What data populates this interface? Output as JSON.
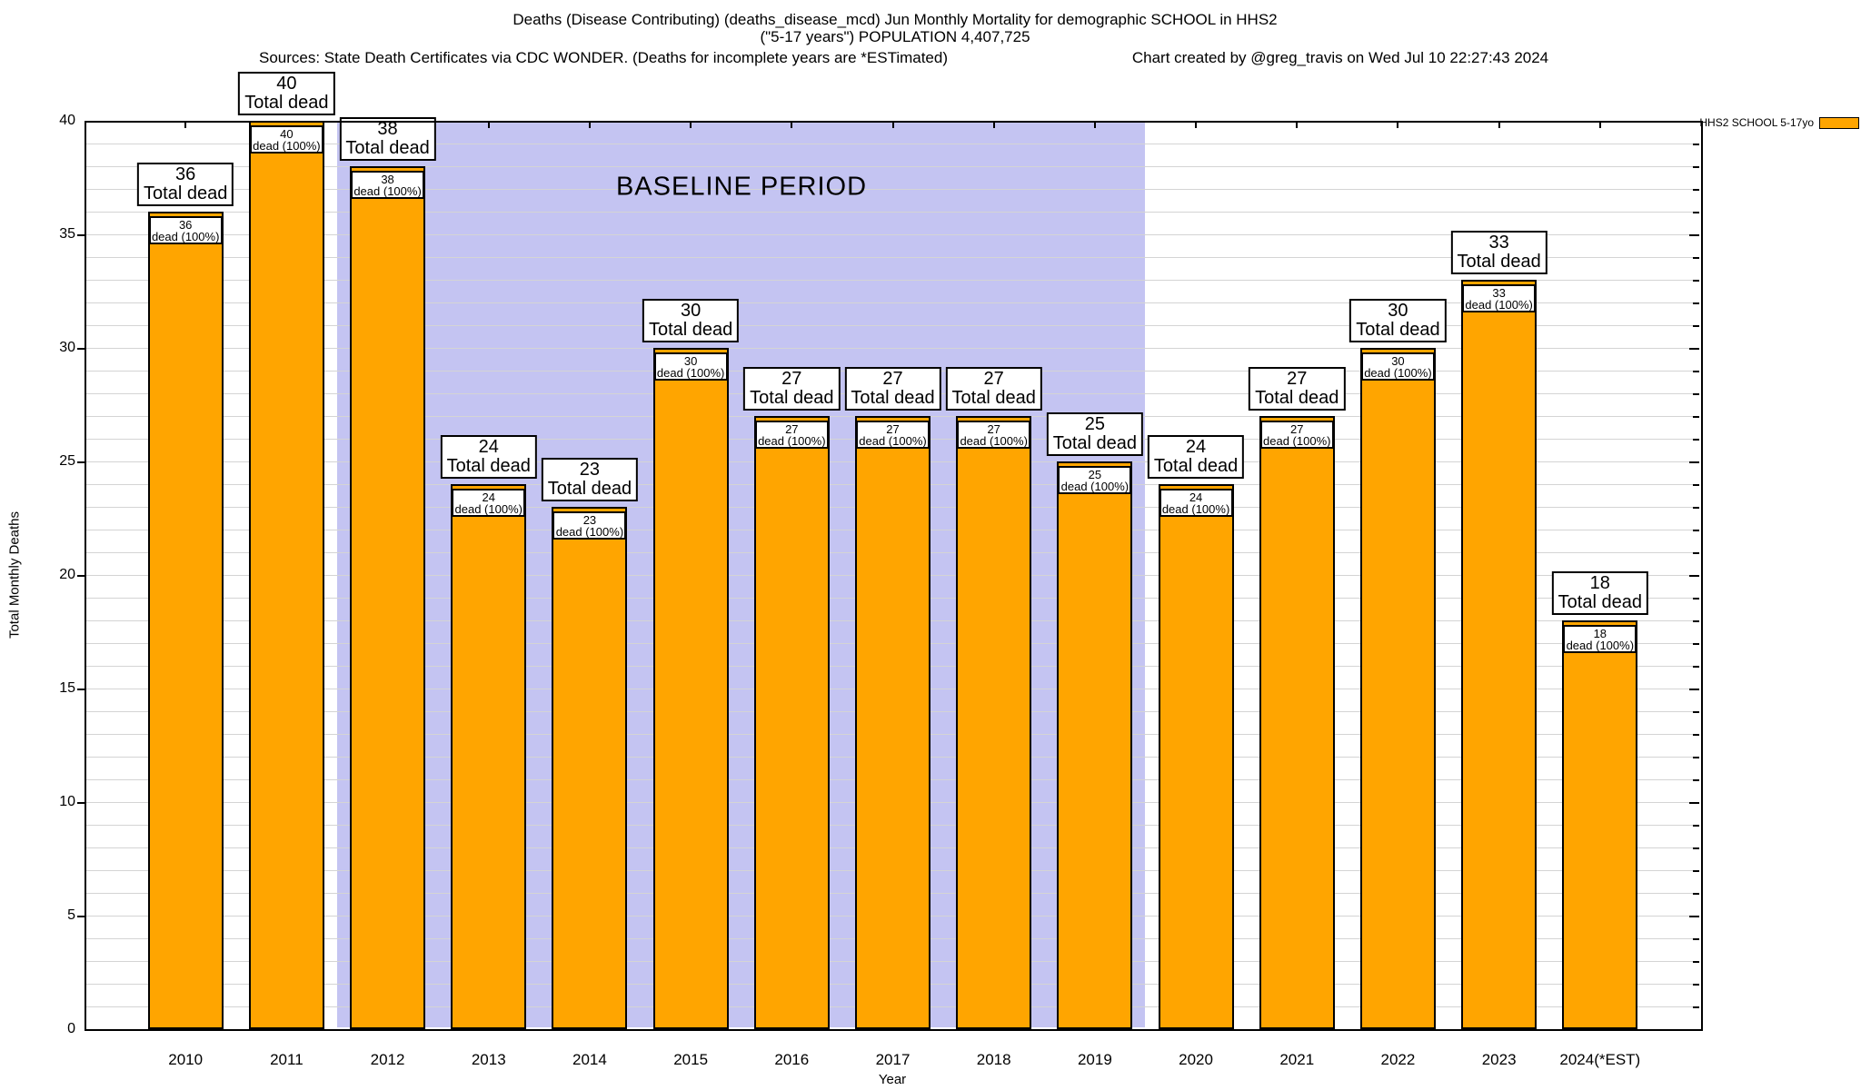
{
  "header": {
    "title_line1": "Deaths (Disease Contributing) (deaths_disease_mcd) Jun Monthly Mortality for demographic SCHOOL in HHS2",
    "title_line2": "(\"5-17 years\") POPULATION 4,407,725",
    "sources_note": "Sources: State Death Certificates via CDC WONDER. (Deaths for incomplete years are *ESTimated)",
    "credit_note": "Chart created by @greg_travis on Wed Jul 10 22:27:43 2024"
  },
  "legend": {
    "label": "HHS2 SCHOOL 5-17yo",
    "swatch_color": "#FFA500"
  },
  "baseline": {
    "label": "BASELINE PERIOD",
    "start_year": 2012,
    "end_year": 2019,
    "color": "#C4C4F2"
  },
  "axes": {
    "ylabel": "Total Monthly Deaths",
    "xlabel": "Year",
    "ytick_labels": [
      "0",
      "5",
      "10",
      "15",
      "20",
      "25",
      "30",
      "35",
      "40"
    ],
    "ylim": [
      0,
      40
    ],
    "minor_grid_step": 1
  },
  "colors": {
    "bar_fill": "#FFA500",
    "bar_border": "#000000",
    "grid": "#d4d4d4"
  },
  "labels": {
    "total_dead_suffix": "Total dead",
    "inner_suffix": "dead (100%)"
  },
  "chart_data": {
    "type": "bar",
    "title": "Deaths (Disease Contributing) (deaths_disease_mcd) Jun Monthly Mortality for demographic SCHOOL in HHS2 (\"5-17 years\") POPULATION 4,407,725",
    "xlabel": "Year",
    "ylabel": "Total Monthly Deaths",
    "ylim": [
      0,
      40
    ],
    "grid": true,
    "legend_position": "top-right",
    "categories": [
      "2010",
      "2011",
      "2012",
      "2013",
      "2014",
      "2015",
      "2016",
      "2017",
      "2018",
      "2019",
      "2020",
      "2021",
      "2022",
      "2023",
      "2024(*EST)"
    ],
    "series": [
      {
        "name": "HHS2 SCHOOL 5-17yo",
        "values": [
          36,
          40,
          38,
          24,
          23,
          30,
          27,
          27,
          27,
          25,
          24,
          27,
          30,
          33,
          18
        ]
      }
    ],
    "annotations": [
      {
        "text": "BASELINE PERIOD",
        "x_range_years": [
          2012,
          2019
        ]
      }
    ],
    "bar_top_labels": [
      "36 Total dead",
      "40 Total dead",
      "38 Total dead",
      "24 Total dead",
      "23 Total dead",
      "30 Total dead",
      "27 Total dead",
      "27 Total dead",
      "27 Total dead",
      "25 Total dead",
      "24 Total dead",
      "27 Total dead",
      "30 Total dead",
      "33 Total dead",
      "18 Total dead"
    ],
    "bar_inner_labels": [
      "36 dead (100%)",
      "40 dead (100%)",
      "38 dead (100%)",
      "24 dead (100%)",
      "23 dead (100%)",
      "30 dead (100%)",
      "27 dead (100%)",
      "27 dead (100%)",
      "27 dead (100%)",
      "25 dead (100%)",
      "24 dead (100%)",
      "27 dead (100%)",
      "30 dead (100%)",
      "33 dead (100%)",
      "18 dead (100%)"
    ]
  }
}
